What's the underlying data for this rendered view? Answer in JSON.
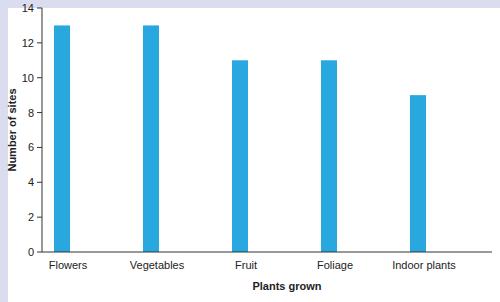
{
  "chart_data": {
    "type": "bar",
    "x_label": "Plants grown",
    "y_label": "Number of sites",
    "categories": [
      "Flowers",
      "Vegetables",
      "Fruit",
      "Foliage",
      "Indoor plants"
    ],
    "values": [
      13,
      13,
      11,
      11,
      9
    ],
    "color": "#29a8df",
    "ylim": [
      0,
      14
    ],
    "yticks": [
      0,
      2,
      4,
      6,
      8,
      10,
      12,
      14
    ],
    "grid": false
  }
}
